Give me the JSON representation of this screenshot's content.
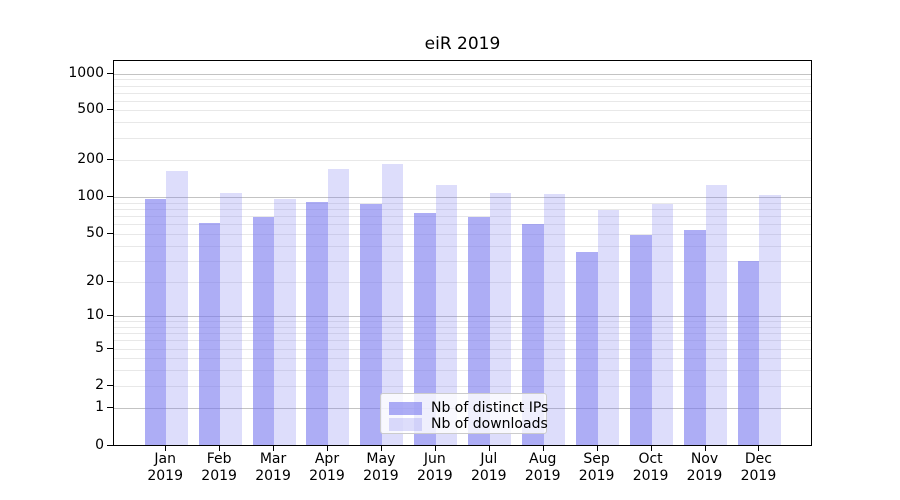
{
  "title": "eiR 2019",
  "legend": {
    "items": [
      {
        "label": "Nb of distinct IPs"
      },
      {
        "label": "Nb of downloads"
      }
    ]
  },
  "colors": {
    "bar_distinct_ips": "rgba(119,119,238,0.6)",
    "bar_downloads": "rgba(119,119,238,0.25)",
    "grid_major": "#c3c3c3",
    "grid_minor": "#e8e8e8",
    "axis": "#000000"
  },
  "chart_data": {
    "type": "bar",
    "title": "eiR 2019",
    "yscale": "symlog",
    "grid": true,
    "legend_position": "lower center",
    "categories": [
      "Jan 2019",
      "Feb 2019",
      "Mar 2019",
      "Apr 2019",
      "May 2019",
      "Jun 2019",
      "Jul 2019",
      "Aug 2019",
      "Sep 2019",
      "Oct 2019",
      "Nov 2019",
      "Dec 2019"
    ],
    "series": [
      {
        "name": "Nb of distinct IPs",
        "values": [
          93,
          59,
          66,
          87,
          84,
          72,
          66,
          58,
          34,
          47,
          52,
          29
        ]
      },
      {
        "name": "Nb of downloads",
        "values": [
          158,
          104,
          92,
          163,
          180,
          120,
          104,
          102,
          76,
          84,
          120,
          100
        ]
      }
    ],
    "y_ticks": [
      0,
      1,
      2,
      5,
      10,
      20,
      50,
      100,
      200,
      500,
      1000
    ],
    "ylim": [
      0,
      1300
    ],
    "xlabel": "",
    "ylabel": ""
  }
}
